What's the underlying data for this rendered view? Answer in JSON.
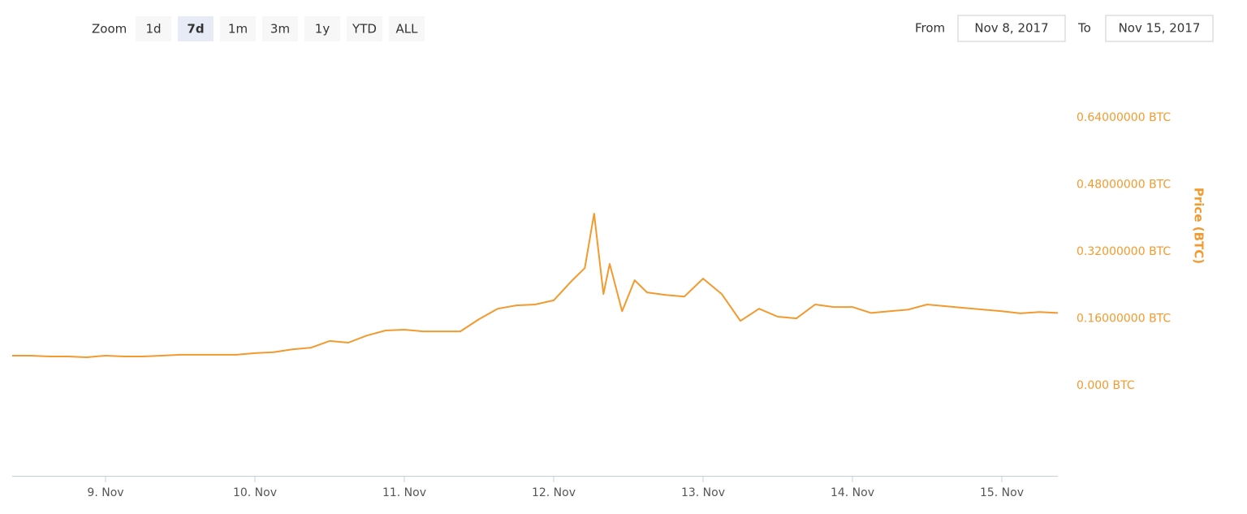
{
  "chart_data": {
    "type": "line",
    "color": "#f39a2e",
    "ylabel": "Price (BTC)",
    "x": [
      "2017-11-08T09:00",
      "2017-11-08T12:00",
      "2017-11-08T15:00",
      "2017-11-08T18:00",
      "2017-11-08T21:00",
      "2017-11-09T00:00",
      "2017-11-09T03:00",
      "2017-11-09T06:00",
      "2017-11-09T09:00",
      "2017-11-09T12:00",
      "2017-11-09T15:00",
      "2017-11-09T18:00",
      "2017-11-09T21:00",
      "2017-11-10T00:00",
      "2017-11-10T03:00",
      "2017-11-10T06:00",
      "2017-11-10T09:00",
      "2017-11-10T12:00",
      "2017-11-10T15:00",
      "2017-11-10T18:00",
      "2017-11-10T21:00",
      "2017-11-11T00:00",
      "2017-11-11T03:00",
      "2017-11-11T06:00",
      "2017-11-11T09:00",
      "2017-11-11T12:00",
      "2017-11-11T15:00",
      "2017-11-11T18:00",
      "2017-11-11T21:00",
      "2017-11-12T00:00",
      "2017-11-12T03:00",
      "2017-11-12T05:00",
      "2017-11-12T06:30",
      "2017-11-12T08:00",
      "2017-11-12T09:00",
      "2017-11-12T11:00",
      "2017-11-12T13:00",
      "2017-11-12T15:00",
      "2017-11-12T18:00",
      "2017-11-12T21:00",
      "2017-11-13T00:00",
      "2017-11-13T03:00",
      "2017-11-13T06:00",
      "2017-11-13T09:00",
      "2017-11-13T12:00",
      "2017-11-13T15:00",
      "2017-11-13T18:00",
      "2017-11-13T21:00",
      "2017-11-14T00:00",
      "2017-11-14T03:00",
      "2017-11-14T06:00",
      "2017-11-14T09:00",
      "2017-11-14T12:00",
      "2017-11-14T15:00",
      "2017-11-14T18:00",
      "2017-11-14T21:00",
      "2017-11-15T00:00",
      "2017-11-15T03:00",
      "2017-11-15T06:00",
      "2017-11-15T09:00"
    ],
    "values": [
      0.072,
      0.072,
      0.07,
      0.07,
      0.068,
      0.072,
      0.07,
      0.07,
      0.072,
      0.074,
      0.074,
      0.074,
      0.074,
      0.078,
      0.08,
      0.087,
      0.091,
      0.107,
      0.103,
      0.12,
      0.132,
      0.134,
      0.13,
      0.13,
      0.13,
      0.159,
      0.184,
      0.192,
      0.194,
      0.204,
      0.252,
      0.281,
      0.411,
      0.219,
      0.291,
      0.178,
      0.252,
      0.223,
      0.217,
      0.213,
      0.256,
      0.219,
      0.155,
      0.184,
      0.165,
      0.161,
      0.194,
      0.188,
      0.188,
      0.174,
      0.178,
      0.182,
      0.194,
      0.19,
      0.186,
      0.182,
      0.178,
      0.173,
      0.176,
      0.174
    ],
    "xlim": [
      "2017-11-08T09:00",
      "2017-11-15T09:00"
    ],
    "xticks": [
      {
        "value": "2017-11-09T00:00",
        "label": "9. Nov"
      },
      {
        "value": "2017-11-10T00:00",
        "label": "10. Nov"
      },
      {
        "value": "2017-11-11T00:00",
        "label": "11. Nov"
      },
      {
        "value": "2017-11-12T00:00",
        "label": "12. Nov"
      },
      {
        "value": "2017-11-13T00:00",
        "label": "13. Nov"
      },
      {
        "value": "2017-11-14T00:00",
        "label": "14. Nov"
      },
      {
        "value": "2017-11-15T00:00",
        "label": "15. Nov"
      }
    ],
    "ylim": [
      -0.215,
      0.64
    ],
    "yticks": [
      {
        "value": 0,
        "label": "0.000 BTC"
      },
      {
        "value": 0.16,
        "label": "0.16000000 BTC"
      },
      {
        "value": 0.32,
        "label": "0.32000000 BTC"
      },
      {
        "value": 0.48,
        "label": "0.48000000 BTC"
      },
      {
        "value": 0.64,
        "label": "0.64000000 BTC"
      }
    ]
  },
  "range_selector": {
    "label": "Zoom",
    "buttons": [
      "1d",
      "7d",
      "1m",
      "3m",
      "1y",
      "YTD",
      "ALL"
    ],
    "selected": 1,
    "from_label": "From",
    "from_value": "Nov 8, 2017",
    "to_label": "To",
    "to_value": "Nov 15, 2017"
  }
}
